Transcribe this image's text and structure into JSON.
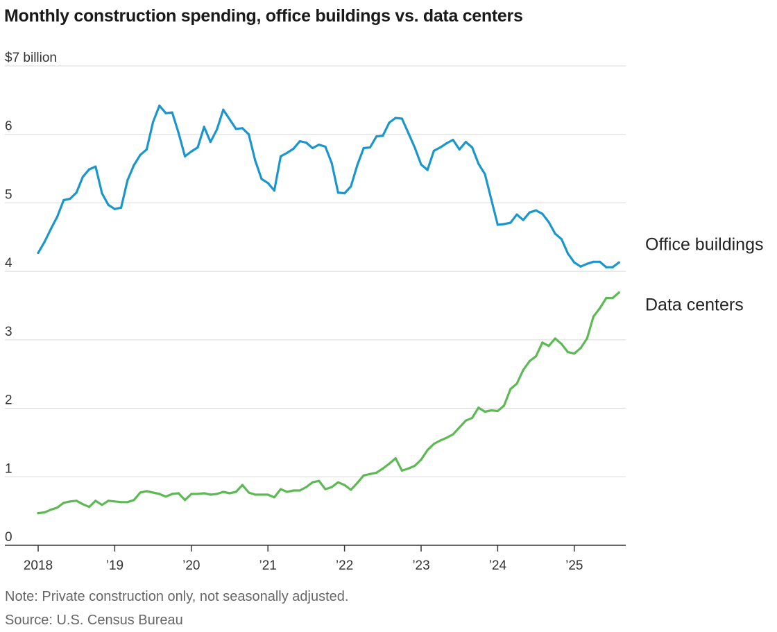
{
  "chart_data": {
    "type": "line",
    "title": "Monthly construction spending, office buildings vs. data centers",
    "y_unit_label": "$7 billion",
    "ylim": [
      0,
      7
    ],
    "y_ticks": [
      {
        "value": 0,
        "label": "0"
      },
      {
        "value": 1,
        "label": "1"
      },
      {
        "value": 2,
        "label": "2"
      },
      {
        "value": 3,
        "label": "3"
      },
      {
        "value": 4,
        "label": "4"
      },
      {
        "value": 5,
        "label": "5"
      },
      {
        "value": 6,
        "label": "6"
      },
      {
        "value": 7,
        "label": "$7 billion"
      }
    ],
    "x_ticks": [
      {
        "value": 2018,
        "label": "2018"
      },
      {
        "value": 2019,
        "label": "’19"
      },
      {
        "value": 2020,
        "label": "’20"
      },
      {
        "value": 2021,
        "label": "’21"
      },
      {
        "value": 2022,
        "label": "’22"
      },
      {
        "value": 2023,
        "label": "’23"
      },
      {
        "value": 2024,
        "label": "’24"
      },
      {
        "value": 2025,
        "label": "’25"
      }
    ],
    "xlim": [
      "2018-01",
      "2025-08"
    ],
    "grid": true,
    "legend": "direct labels at line ends (right)",
    "series": [
      {
        "name": "Office buildings",
        "color": "#1a96cc",
        "start": "2018-01",
        "values": [
          4.27,
          4.43,
          4.62,
          4.8,
          5.04,
          5.06,
          5.15,
          5.38,
          5.49,
          5.53,
          5.14,
          4.97,
          4.91,
          4.93,
          5.33,
          5.55,
          5.7,
          5.78,
          6.18,
          6.42,
          6.31,
          6.32,
          6.02,
          5.68,
          5.75,
          5.81,
          6.11,
          5.89,
          6.07,
          6.36,
          6.22,
          6.08,
          6.09,
          6.0,
          5.62,
          5.35,
          5.29,
          5.18,
          5.68,
          5.73,
          5.79,
          5.9,
          5.88,
          5.8,
          5.85,
          5.82,
          5.58,
          5.15,
          5.14,
          5.24,
          5.55,
          5.8,
          5.81,
          5.97,
          5.98,
          6.17,
          6.24,
          6.23,
          6.02,
          5.81,
          5.56,
          5.48,
          5.76,
          5.81,
          5.87,
          5.92,
          5.78,
          5.89,
          5.81,
          5.57,
          5.42,
          5.05,
          4.68,
          4.69,
          4.71,
          4.83,
          4.75,
          4.86,
          4.89,
          4.84,
          4.72,
          4.55,
          4.47,
          4.26,
          4.13,
          4.07,
          4.11,
          4.14,
          4.14,
          4.06,
          4.06,
          4.13
        ]
      },
      {
        "name": "Data centers",
        "color": "#5db954",
        "start": "2018-01",
        "values": [
          0.47,
          0.48,
          0.52,
          0.55,
          0.62,
          0.64,
          0.65,
          0.6,
          0.56,
          0.65,
          0.59,
          0.65,
          0.64,
          0.63,
          0.63,
          0.66,
          0.77,
          0.79,
          0.77,
          0.75,
          0.71,
          0.75,
          0.76,
          0.66,
          0.75,
          0.75,
          0.76,
          0.74,
          0.75,
          0.78,
          0.76,
          0.78,
          0.88,
          0.77,
          0.74,
          0.74,
          0.74,
          0.7,
          0.82,
          0.78,
          0.8,
          0.8,
          0.85,
          0.92,
          0.94,
          0.82,
          0.85,
          0.92,
          0.88,
          0.81,
          0.91,
          1.02,
          1.04,
          1.06,
          1.12,
          1.19,
          1.27,
          1.09,
          1.12,
          1.16,
          1.25,
          1.39,
          1.48,
          1.53,
          1.57,
          1.62,
          1.72,
          1.82,
          1.86,
          2.01,
          1.95,
          1.97,
          1.96,
          2.04,
          2.28,
          2.36,
          2.56,
          2.69,
          2.76,
          2.96,
          2.91,
          3.02,
          2.94,
          2.82,
          2.8,
          2.88,
          3.02,
          3.34,
          3.46,
          3.61,
          3.61,
          3.69
        ]
      }
    ]
  },
  "footer": {
    "note": "Note: Private construction only, not seasonally adjusted.",
    "source": "Source: U.S. Census Bureau"
  }
}
